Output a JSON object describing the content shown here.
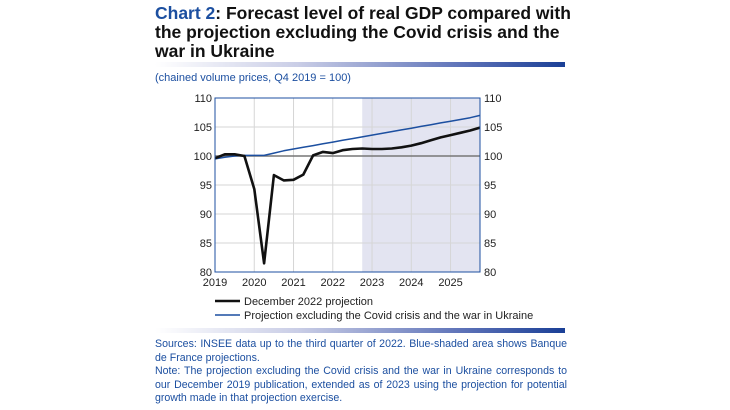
{
  "header": {
    "chart_label": "Chart 2",
    "title": ": Forecast level of real GDP compared with the projection excluding the Covid crisis and the war in Ukraine",
    "subtitle": "(chained volume prices, Q4 2019 = 100)"
  },
  "footer": {
    "sources": "Sources: INSEE data up to the third quarter of 2022. Blue-shaded area shows Banque de France projections.",
    "note": "Note: The projection excluding the Covid crisis and the war in Ukraine corresponds to our December 2019 publication, extended as of 2023 using the projection for potential growth made in that projection exercise."
  },
  "chart_data": {
    "type": "line",
    "xlabel": "",
    "ylabel": "",
    "x_ticks": [
      "2019",
      "2020",
      "2021",
      "2022",
      "2023",
      "2024",
      "2025"
    ],
    "y_ticks": [
      80,
      85,
      90,
      95,
      100,
      105,
      110
    ],
    "ylim": [
      80,
      110
    ],
    "grid": true,
    "dual_y_axis": true,
    "legend_position": "bottom",
    "reference_line": 100,
    "shaded_region": {
      "from": "2022 Q4",
      "to": "2025 Q4",
      "color": "#e3e4f1"
    },
    "x": [
      "2019 Q1",
      "2019 Q2",
      "2019 Q3",
      "2019 Q4",
      "2020 Q1",
      "2020 Q2",
      "2020 Q3",
      "2020 Q4",
      "2021 Q1",
      "2021 Q2",
      "2021 Q3",
      "2021 Q4",
      "2022 Q1",
      "2022 Q2",
      "2022 Q3",
      "2022 Q4",
      "2023 Q1",
      "2023 Q2",
      "2023 Q3",
      "2023 Q4",
      "2024 Q1",
      "2024 Q2",
      "2024 Q3",
      "2024 Q4",
      "2025 Q1",
      "2025 Q2",
      "2025 Q3",
      "2025 Q4"
    ],
    "series": [
      {
        "name": "December 2022 projection",
        "color": "#111111",
        "values": [
          99.6,
          100.3,
          100.3,
          100.0,
          94.3,
          81.5,
          96.7,
          95.8,
          95.9,
          96.8,
          100.1,
          100.7,
          100.5,
          101.0,
          101.2,
          101.3,
          101.2,
          101.2,
          101.3,
          101.5,
          101.8,
          102.2,
          102.7,
          103.2,
          103.6,
          104.0,
          104.4,
          104.9
        ]
      },
      {
        "name": "Projection excluding the Covid crisis and the war in Ukraine",
        "color": "#1c4fa0",
        "values": [
          99.5,
          99.8,
          100.0,
          100.1,
          100.1,
          100.1,
          100.5,
          100.9,
          101.2,
          101.5,
          101.8,
          102.1,
          102.4,
          102.7,
          103.0,
          103.3,
          103.6,
          103.9,
          104.2,
          104.5,
          104.8,
          105.1,
          105.4,
          105.7,
          106.0,
          106.3,
          106.6,
          107.0
        ]
      }
    ]
  }
}
